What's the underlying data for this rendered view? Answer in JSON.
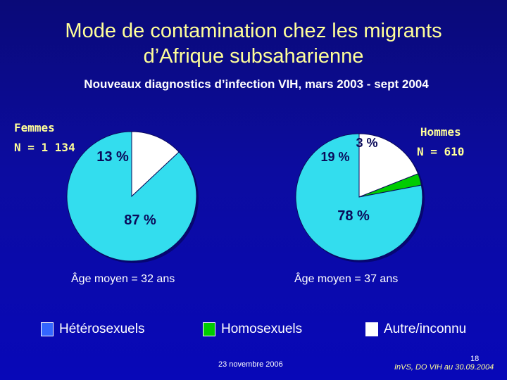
{
  "slide": {
    "title_line1": "Mode de contamination chez les migrants",
    "title_line2": "d’Afrique subsaharienne",
    "subtitle": "Nouveaux diagnostics d’infection VIH, mars 2003 - sept 2004",
    "date": "23 novembre 2006",
    "source": "InVS, DO VIH au 30.09.2004",
    "page": "18"
  },
  "groups": {
    "women": {
      "label": "Femmes",
      "n": "N = 1 134",
      "age": "Âge moyen = 32 ans"
    },
    "men": {
      "label": "Hommes",
      "n": "N = 610",
      "age": "Âge moyen = 37 ans"
    }
  },
  "legend": [
    {
      "label": "Hétérosexuels",
      "color": "#3366ff"
    },
    {
      "label": "Homosexuels",
      "color": "#00cc00"
    },
    {
      "label": "Autre/inconnu",
      "color": "#ffffff"
    }
  ],
  "colors": {
    "heterosexual_slice": "#33ddee",
    "homosexual_slice": "#00cc00",
    "other_slice": "#ffffff",
    "title": "#ffff99"
  },
  "chart_data": [
    {
      "type": "pie",
      "title": "Femmes",
      "categories": [
        "Hétérosexuels",
        "Autre/inconnu"
      ],
      "values": [
        87,
        13
      ],
      "labels": [
        "87 %",
        "13 %"
      ]
    },
    {
      "type": "pie",
      "title": "Hommes",
      "categories": [
        "Hétérosexuels",
        "Homosexuels",
        "Autre/inconnu"
      ],
      "values": [
        78,
        3,
        19
      ],
      "labels": [
        "78 %",
        "3 %",
        "19 %"
      ]
    }
  ]
}
